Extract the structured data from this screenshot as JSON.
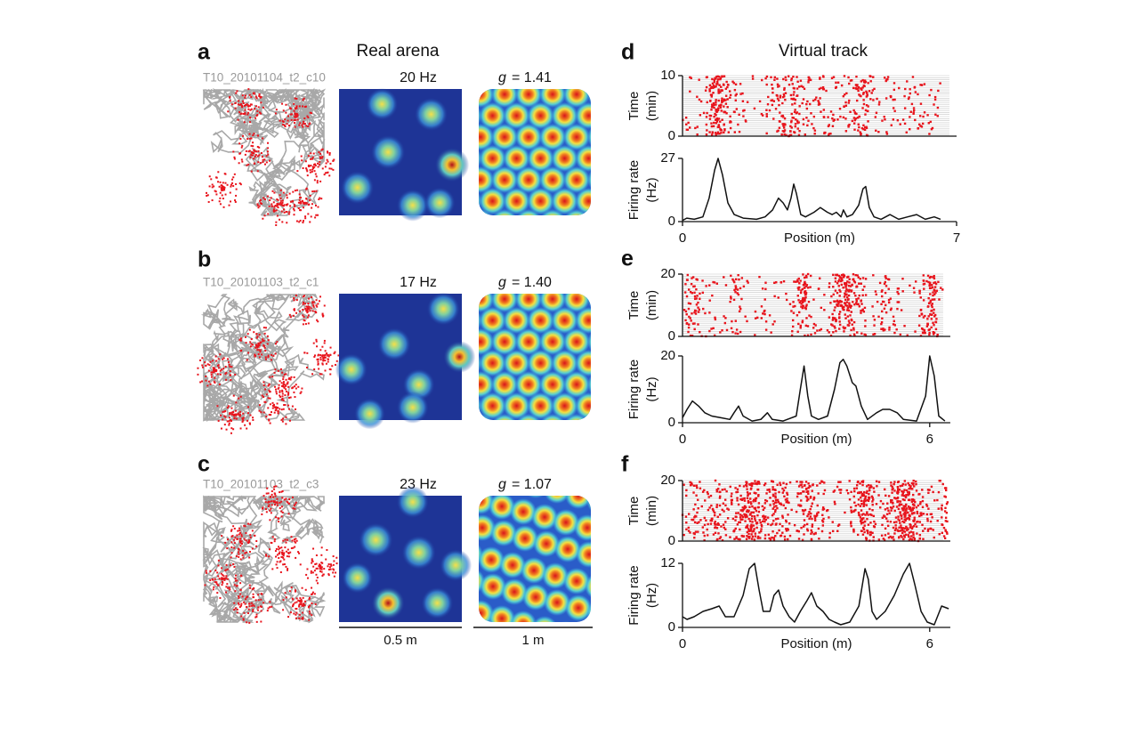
{
  "headings": {
    "real": "Real arena",
    "virtual": "Virtual track"
  },
  "rows": [
    {
      "label": "a",
      "cell": "T10_20101104_t2_c10",
      "peak": "20 Hz",
      "gridness": {
        "symbol": "g",
        "label": "= 1.41"
      }
    },
    {
      "label": "b",
      "cell": "T10_20101103_t2_c1",
      "peak": "17 Hz",
      "gridness": {
        "symbol": "g",
        "label": "= 1.40"
      }
    },
    {
      "label": "c",
      "cell": "T10_20101103_t2_c3",
      "peak": "23 Hz",
      "gridness": {
        "symbol": "g",
        "label": "= 1.07"
      }
    }
  ],
  "scale_bars": [
    "0.5 m",
    "1 m"
  ],
  "tracks": [
    {
      "label": "d",
      "raster": {
        "ylabel": [
          "Time",
          "(min)"
        ],
        "ylim": [
          0,
          10
        ],
        "yticks": [
          0,
          10
        ]
      },
      "rate": {
        "ylabel": [
          "Firing rate",
          "(Hz)"
        ],
        "xlabel": "Position (m)",
        "xlim": [
          0,
          7
        ],
        "xticks": [
          0,
          7
        ],
        "ylim": [
          0,
          27
        ],
        "yticks": [
          0,
          27
        ],
        "x": [
          0,
          0.11,
          0.3,
          0.52,
          0.68,
          0.82,
          0.91,
          1.02,
          1.16,
          1.32,
          1.55,
          1.89,
          2.11,
          2.3,
          2.45,
          2.57,
          2.68,
          2.77,
          2.84,
          2.91,
          3.02,
          3.14,
          3.36,
          3.52,
          3.7,
          3.82,
          3.93,
          4.05,
          4.11,
          4.2,
          4.34,
          4.5,
          4.61,
          4.68,
          4.77,
          4.89,
          5.07,
          5.3,
          5.52,
          5.75,
          5.98,
          6.2,
          6.43,
          6.59
        ],
        "values": [
          0.5,
          1.5,
          1,
          2,
          10,
          22,
          27,
          20,
          8,
          3,
          1.5,
          1,
          2,
          5,
          10,
          8,
          5,
          10,
          16,
          12,
          3,
          2,
          4,
          6,
          4,
          3,
          4,
          2,
          5,
          2,
          3,
          7,
          14,
          15,
          6,
          2,
          1,
          3,
          1,
          2,
          3,
          1,
          2,
          1
        ]
      }
    },
    {
      "label": "e",
      "raster": {
        "ylabel": [
          "Time",
          "(min)"
        ],
        "ylim": [
          0,
          20
        ],
        "yticks": [
          0,
          20
        ]
      },
      "rate": {
        "ylabel": [
          "Firing rate",
          "(Hz)"
        ],
        "xlabel": "Position (m)",
        "xlim": [
          0,
          6.5
        ],
        "xticks": [
          0,
          6
        ],
        "ylim": [
          0,
          20
        ],
        "yticks": [
          0,
          20
        ],
        "x": [
          0,
          0.11,
          0.24,
          0.39,
          0.54,
          0.71,
          0.93,
          1.15,
          1.25,
          1.36,
          1.47,
          1.69,
          1.9,
          2.06,
          2.18,
          2.44,
          2.76,
          2.86,
          2.95,
          3.04,
          3.13,
          3.3,
          3.52,
          3.69,
          3.82,
          3.9,
          3.99,
          4.12,
          4.21,
          4.34,
          4.49,
          4.71,
          4.86,
          5.03,
          5.21,
          5.36,
          5.68,
          5.9,
          6.0,
          6.11,
          6.22,
          6.37
        ],
        "values": [
          1.5,
          4,
          6.5,
          5,
          3,
          2,
          1.5,
          1,
          3,
          5,
          2,
          0.5,
          1,
          3,
          1,
          0.5,
          2,
          10,
          17,
          8,
          2,
          1,
          2,
          10,
          18,
          19,
          17,
          12,
          11,
          5,
          1,
          3,
          4,
          4,
          3,
          1,
          0.5,
          8,
          20,
          14,
          2,
          0.5
        ]
      }
    },
    {
      "label": "f",
      "raster": {
        "ylabel": [
          "Time",
          "(min)"
        ],
        "ylim": [
          0,
          20
        ],
        "yticks": [
          0,
          20
        ]
      },
      "rate": {
        "ylabel": [
          "Firing rate",
          "(Hz)"
        ],
        "xlabel": "Position (m)",
        "xlim": [
          0,
          6.5
        ],
        "xticks": [
          0,
          6
        ],
        "ylim": [
          0,
          12
        ],
        "yticks": [
          0,
          12
        ],
        "x": [
          0,
          0.11,
          0.28,
          0.5,
          0.71,
          0.89,
          1.04,
          1.25,
          1.47,
          1.62,
          1.75,
          1.86,
          1.96,
          2.12,
          2.22,
          2.33,
          2.44,
          2.59,
          2.72,
          2.86,
          3.02,
          3.13,
          3.26,
          3.41,
          3.56,
          3.69,
          3.84,
          4.06,
          4.28,
          4.43,
          4.51,
          4.6,
          4.71,
          4.92,
          5.14,
          5.36,
          5.51,
          5.64,
          5.79,
          5.94,
          6.11,
          6.29,
          6.46
        ],
        "values": [
          2,
          1.5,
          2,
          3,
          3.5,
          4,
          2,
          2,
          6,
          11,
          12,
          7,
          3,
          3,
          6,
          7,
          4,
          2,
          1,
          3,
          5,
          6.5,
          4,
          3,
          1.5,
          1,
          0.5,
          1,
          4,
          11,
          9,
          3,
          1.5,
          3,
          6,
          10,
          12,
          8,
          3,
          1,
          0.5,
          4,
          3.5
        ]
      }
    }
  ]
}
